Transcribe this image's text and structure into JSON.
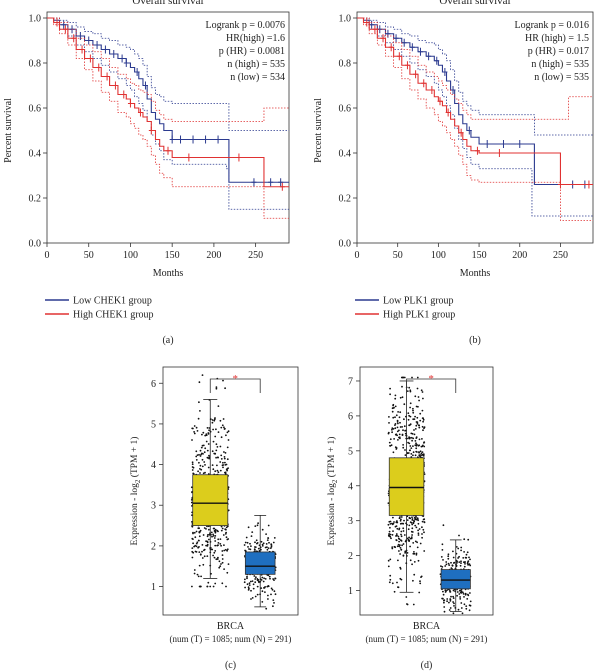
{
  "chart_data": [
    {
      "id": "a",
      "type": "line",
      "subtype": "kaplan-meier",
      "title": "Overall survival",
      "xlabel": "Months",
      "ylabel": "Percent survival",
      "xlim": [
        0,
        290
      ],
      "ylim": [
        0,
        1.0
      ],
      "xticks": [
        0,
        50,
        100,
        150,
        200,
        250
      ],
      "yticks": [
        0.0,
        0.2,
        0.4,
        0.6,
        0.8,
        1.0
      ],
      "ytick_labels": [
        "0.0",
        "0.2",
        "0.4",
        "0.6",
        "0.8",
        "1.0"
      ],
      "stats": [
        "Logrank p = 0.0076",
        "HR(high) =1.6",
        "p (HR) = 0.0081",
        "n (high) = 535",
        "n (low) = 534"
      ],
      "legend": [
        "Low CHEK1 group",
        "High CHEK1 group"
      ],
      "caption": "(a)",
      "series": [
        {
          "name": "Low CHEK1 group",
          "color": "#2b3a8f",
          "x": [
            0,
            8,
            15,
            25,
            35,
            45,
            55,
            65,
            75,
            85,
            95,
            100,
            105,
            110,
            115,
            120,
            125,
            130,
            135,
            140,
            150,
            160,
            175,
            190,
            205,
            215,
            218,
            240,
            260,
            290
          ],
          "y": [
            1.0,
            0.99,
            0.97,
            0.95,
            0.92,
            0.9,
            0.88,
            0.86,
            0.84,
            0.82,
            0.8,
            0.78,
            0.76,
            0.73,
            0.7,
            0.64,
            0.58,
            0.55,
            0.53,
            0.5,
            0.46,
            0.46,
            0.46,
            0.46,
            0.46,
            0.46,
            0.27,
            0.27,
            0.27,
            0.27
          ],
          "lower": [
            1.0,
            0.98,
            0.95,
            0.92,
            0.88,
            0.85,
            0.82,
            0.79,
            0.76,
            0.73,
            0.7,
            0.68,
            0.65,
            0.62,
            0.59,
            0.54,
            0.48,
            0.44,
            0.41,
            0.37,
            0.35,
            0.35,
            0.35,
            0.35,
            0.35,
            0.33,
            0.15,
            0.15,
            0.15,
            0.15
          ],
          "upper": [
            1.0,
            1.0,
            0.99,
            0.98,
            0.96,
            0.94,
            0.93,
            0.91,
            0.9,
            0.88,
            0.87,
            0.86,
            0.84,
            0.82,
            0.79,
            0.74,
            0.69,
            0.66,
            0.65,
            0.63,
            0.62,
            0.62,
            0.62,
            0.62,
            0.62,
            0.62,
            0.5,
            0.5,
            0.5,
            0.5
          ],
          "censor_x": [
            20,
            30,
            40,
            50,
            60,
            70,
            80,
            90,
            95,
            108,
            118,
            150,
            160,
            175,
            190,
            205,
            248,
            268,
            280
          ]
        },
        {
          "name": "High CHEK1 group",
          "color": "#e03232",
          "x": [
            0,
            8,
            15,
            25,
            35,
            45,
            55,
            65,
            75,
            85,
            95,
            100,
            105,
            110,
            115,
            120,
            125,
            130,
            135,
            140,
            150,
            160,
            175,
            190,
            205,
            215,
            230,
            250,
            260,
            290
          ],
          "y": [
            1.0,
            0.98,
            0.95,
            0.91,
            0.86,
            0.82,
            0.78,
            0.74,
            0.7,
            0.66,
            0.64,
            0.62,
            0.6,
            0.58,
            0.56,
            0.54,
            0.5,
            0.46,
            0.43,
            0.41,
            0.38,
            0.38,
            0.38,
            0.38,
            0.38,
            0.38,
            0.38,
            0.38,
            0.25,
            0.25
          ],
          "lower": [
            1.0,
            0.97,
            0.93,
            0.88,
            0.82,
            0.77,
            0.72,
            0.67,
            0.63,
            0.58,
            0.56,
            0.53,
            0.51,
            0.48,
            0.46,
            0.43,
            0.39,
            0.35,
            0.31,
            0.29,
            0.25,
            0.25,
            0.25,
            0.25,
            0.25,
            0.25,
            0.25,
            0.25,
            0.11,
            0.11
          ],
          "upper": [
            1.0,
            1.0,
            0.98,
            0.95,
            0.91,
            0.88,
            0.85,
            0.82,
            0.78,
            0.75,
            0.73,
            0.71,
            0.7,
            0.68,
            0.67,
            0.66,
            0.63,
            0.59,
            0.57,
            0.55,
            0.54,
            0.54,
            0.54,
            0.54,
            0.54,
            0.54,
            0.54,
            0.54,
            0.6,
            0.6
          ],
          "censor_x": [
            12,
            22,
            32,
            42,
            52,
            62,
            72,
            82,
            92,
            100,
            112,
            125,
            145,
            170,
            230,
            282
          ]
        }
      ]
    },
    {
      "id": "b",
      "type": "line",
      "subtype": "kaplan-meier",
      "title": "Overall survival",
      "xlabel": "Months",
      "ylabel": "Percent survival",
      "xlim": [
        0,
        290
      ],
      "ylim": [
        0,
        1.0
      ],
      "xticks": [
        0,
        50,
        100,
        150,
        200,
        250
      ],
      "yticks": [
        0.0,
        0.2,
        0.4,
        0.6,
        0.8,
        1.0
      ],
      "ytick_labels": [
        "0.0",
        "0.2",
        "0.4",
        "0.6",
        "0.8",
        "1.0"
      ],
      "stats": [
        "Logrank p = 0.016",
        "HR (high) = 1.5",
        "p (HR) = 0.017",
        "n (high) = 535",
        "n (low) = 535"
      ],
      "legend": [
        "Low PLK1 group",
        "High PLK1 group"
      ],
      "caption": "(b)",
      "series": [
        {
          "name": "Low PLK1 group",
          "color": "#2b3a8f",
          "x": [
            0,
            8,
            15,
            25,
            35,
            45,
            55,
            65,
            75,
            85,
            95,
            100,
            105,
            110,
            115,
            120,
            125,
            130,
            135,
            140,
            150,
            160,
            175,
            190,
            205,
            215,
            218,
            240,
            260,
            290
          ],
          "y": [
            1.0,
            0.99,
            0.97,
            0.95,
            0.93,
            0.91,
            0.89,
            0.87,
            0.85,
            0.83,
            0.81,
            0.79,
            0.76,
            0.72,
            0.68,
            0.62,
            0.57,
            0.53,
            0.5,
            0.47,
            0.44,
            0.44,
            0.44,
            0.44,
            0.44,
            0.44,
            0.26,
            0.26,
            0.26,
            0.26
          ],
          "lower": [
            1.0,
            0.98,
            0.95,
            0.92,
            0.89,
            0.86,
            0.83,
            0.8,
            0.77,
            0.74,
            0.71,
            0.68,
            0.65,
            0.61,
            0.57,
            0.51,
            0.46,
            0.42,
            0.38,
            0.35,
            0.33,
            0.33,
            0.33,
            0.33,
            0.33,
            0.12,
            0.12,
            0.12,
            0.12,
            0.12
          ],
          "upper": [
            1.0,
            1.0,
            0.99,
            0.98,
            0.96,
            0.95,
            0.93,
            0.92,
            0.9,
            0.89,
            0.88,
            0.86,
            0.84,
            0.81,
            0.77,
            0.72,
            0.67,
            0.63,
            0.61,
            0.59,
            0.57,
            0.57,
            0.57,
            0.57,
            0.57,
            0.57,
            0.48,
            0.48,
            0.48,
            0.48
          ],
          "censor_x": [
            18,
            28,
            38,
            48,
            58,
            68,
            78,
            88,
            98,
            108,
            118,
            138,
            160,
            180,
            200,
            265,
            280
          ]
        },
        {
          "name": "High PLK1 group",
          "color": "#e03232",
          "x": [
            0,
            8,
            15,
            25,
            35,
            45,
            55,
            65,
            75,
            85,
            95,
            100,
            105,
            110,
            115,
            120,
            125,
            130,
            135,
            140,
            150,
            160,
            175,
            190,
            205,
            215,
            230,
            250,
            260,
            290
          ],
          "y": [
            1.0,
            0.98,
            0.95,
            0.91,
            0.87,
            0.83,
            0.79,
            0.75,
            0.71,
            0.68,
            0.65,
            0.63,
            0.61,
            0.58,
            0.55,
            0.52,
            0.49,
            0.46,
            0.43,
            0.41,
            0.4,
            0.4,
            0.4,
            0.4,
            0.4,
            0.4,
            0.4,
            0.26,
            0.26,
            0.26
          ],
          "lower": [
            1.0,
            0.97,
            0.93,
            0.88,
            0.83,
            0.78,
            0.73,
            0.68,
            0.64,
            0.6,
            0.57,
            0.54,
            0.52,
            0.49,
            0.46,
            0.43,
            0.39,
            0.35,
            0.3,
            0.28,
            0.27,
            0.27,
            0.27,
            0.27,
            0.27,
            0.27,
            0.27,
            0.1,
            0.1,
            0.1
          ],
          "upper": [
            1.0,
            1.0,
            0.98,
            0.95,
            0.92,
            0.89,
            0.86,
            0.83,
            0.79,
            0.76,
            0.74,
            0.72,
            0.7,
            0.68,
            0.66,
            0.64,
            0.62,
            0.59,
            0.57,
            0.55,
            0.55,
            0.55,
            0.55,
            0.55,
            0.55,
            0.55,
            0.55,
            0.55,
            0.65,
            0.65
          ],
          "censor_x": [
            12,
            22,
            32,
            42,
            52,
            62,
            72,
            82,
            92,
            102,
            112,
            128,
            148,
            175,
            250,
            285
          ]
        }
      ]
    },
    {
      "id": "c",
      "type": "boxplot",
      "ylabel_text": "Expression - log",
      "ylabel_sub": "2",
      "ylabel_rest": " (TPM + 1)",
      "ylim": [
        0.3,
        6.4
      ],
      "yticks": [
        1,
        2,
        3,
        4,
        5,
        6
      ],
      "ytick_labels": [
        "1",
        "2",
        "3",
        "4",
        "5",
        "6"
      ],
      "category": "BRCA",
      "sample_text": "(num (T) = 1085; num (N) = 291)",
      "significance": "*",
      "caption": "(c)",
      "boxes": [
        {
          "group": "Tumor",
          "color": "#dccd1c",
          "min": 1.2,
          "q1": 2.5,
          "median": 3.05,
          "q3": 3.75,
          "max": 5.6,
          "n": 1085,
          "range": [
            1.0,
            6.2
          ]
        },
        {
          "group": "Normal",
          "color": "#1f6fc0",
          "min": 0.5,
          "q1": 1.3,
          "median": 1.5,
          "q3": 1.85,
          "max": 2.75,
          "n": 291,
          "range": [
            0.45,
            3.8
          ]
        }
      ]
    },
    {
      "id": "d",
      "type": "boxplot",
      "ylabel_text": "Expression - log",
      "ylabel_sub": "2",
      "ylabel_rest": " (TPM + 1)",
      "ylim": [
        0.3,
        7.4
      ],
      "yticks": [
        1,
        2,
        3,
        4,
        5,
        6,
        7
      ],
      "ytick_labels": [
        "1",
        "2",
        "3",
        "4",
        "5",
        "6",
        "7"
      ],
      "category": "BRCA",
      "sample_text": "(num (T) = 1085; num (N) = 291)",
      "significance": "*",
      "caption": "(d)",
      "boxes": [
        {
          "group": "Tumor",
          "color": "#dccd1c",
          "min": 0.95,
          "q1": 3.15,
          "median": 3.95,
          "q3": 4.8,
          "max": 7.0,
          "n": 1085,
          "range": [
            0.6,
            7.1
          ]
        },
        {
          "group": "Normal",
          "color": "#1f6fc0",
          "min": 0.4,
          "q1": 1.05,
          "median": 1.3,
          "q3": 1.6,
          "max": 2.45,
          "n": 291,
          "range": [
            0.35,
            4.1
          ]
        }
      ]
    }
  ]
}
